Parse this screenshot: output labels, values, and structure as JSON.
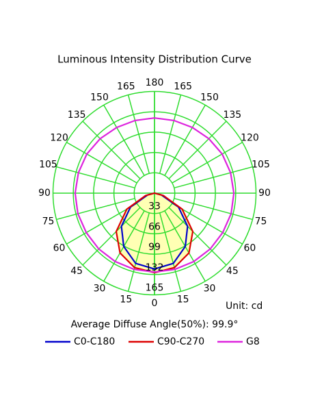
{
  "chart_data": {
    "type": "polar",
    "title": "Luminous Intensity Distribution Curve",
    "unit_label": "Unit: cd",
    "annotation": "Average Diffuse Angle(50%): 99.9°",
    "angles": [
      0,
      15,
      30,
      45,
      60,
      75,
      90,
      105,
      120,
      135,
      150,
      165,
      180
    ],
    "rlim": [
      0,
      165
    ],
    "rticks": [
      33,
      66,
      99,
      132,
      165
    ],
    "grid_color": "#2ddc2d",
    "fill_color": "#ffffb4",
    "series": [
      {
        "name": "C0-C180",
        "color": "#0000cc",
        "values": [
          123,
          118,
          100,
          76,
          45,
          12,
          0,
          0,
          0,
          0,
          0,
          0,
          0
        ]
      },
      {
        "name": "C90-C270",
        "color": "#dd0000",
        "values": [
          129,
          125,
          112,
          88,
          52,
          15,
          0,
          0,
          0,
          0,
          0,
          0,
          0
        ]
      },
      {
        "name": "G8",
        "color": "#dd22dd",
        "values": [
          128,
          128,
          128,
          128,
          128,
          129,
          129,
          128,
          127,
          125,
          123,
          122,
          122
        ]
      }
    ]
  }
}
